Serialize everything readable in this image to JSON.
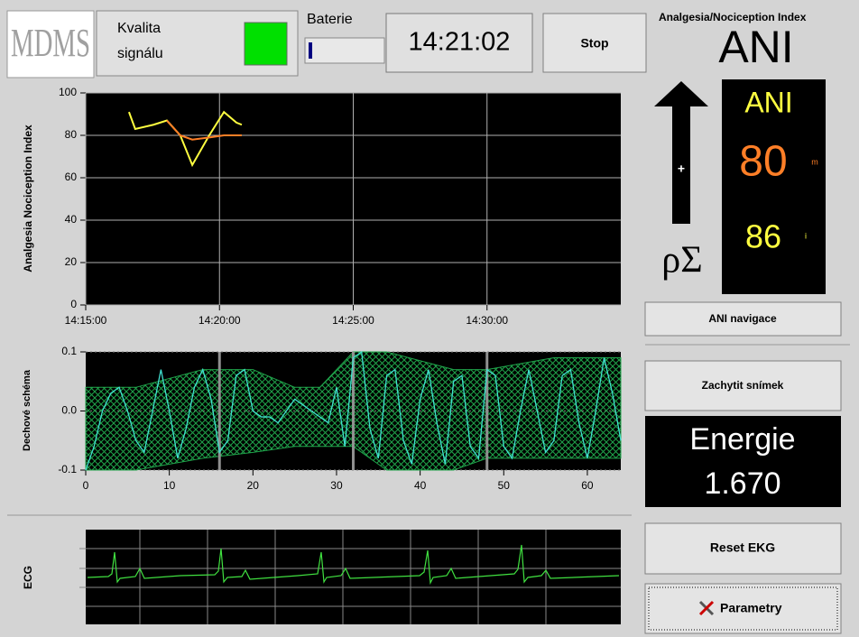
{
  "header": {
    "logo": "MDMS",
    "signal_quality_line1": "Kvalita",
    "signal_quality_line2": "signálu",
    "battery": "Baterie",
    "clock": "14:21:02",
    "stop_button": "Stop",
    "index_title": "Analgesia/Nociception Index",
    "index_short": "ANI"
  },
  "ani_panel": {
    "arrow_sign": "+",
    "symbol": "ρΣ",
    "title": "ANI",
    "mean_value": "80",
    "mean_suffix": "m",
    "instant_value": "86",
    "instant_suffix": "i"
  },
  "buttons": {
    "ani_navigation": "ANI navigace",
    "capture": "Zachytit snímek",
    "reset_ecg": "Reset EKG",
    "parameters": "Parametry"
  },
  "energy": {
    "label": "Energie",
    "value": "1.670"
  },
  "ani_chart": {
    "type": "line",
    "ylabel": "Analgesia Nociception Index",
    "x": [
      "14:16:37",
      "14:16:51",
      "14:17:32",
      "14:18:02",
      "14:18:32",
      "14:18:59",
      "14:19:37",
      "14:20:10",
      "14:20:38",
      "14:20:50"
    ],
    "series": [
      {
        "color": "#ffff40",
        "values": [
          91,
          83,
          85,
          87,
          80,
          66,
          80,
          91,
          86,
          85
        ]
      },
      {
        "color": "#ff7f27",
        "values": [
          null,
          null,
          null,
          87,
          80,
          78,
          79,
          80,
          80,
          80
        ]
      }
    ],
    "xlim": [
      "14:15:00",
      "14:35:00"
    ],
    "xticks": [
      "14:15:00",
      "14:20:00",
      "14:25:00",
      "14:30:00"
    ],
    "ylim": [
      0,
      100
    ],
    "yticks": [
      0,
      20,
      40,
      60,
      80,
      100
    ],
    "grid": true
  },
  "respiration_chart": {
    "type": "line",
    "ylabel": "Dechové schéma",
    "x": [
      0,
      1,
      2,
      3,
      4,
      5,
      6,
      7,
      8,
      9,
      10,
      11,
      12,
      13,
      14,
      15,
      16,
      17,
      18,
      19,
      20,
      21,
      22,
      23,
      24,
      25,
      26,
      27,
      28,
      29,
      30,
      31,
      32,
      33,
      34,
      35,
      36,
      37,
      38,
      39,
      40,
      41,
      42,
      43,
      44,
      45,
      46,
      47,
      48,
      49,
      50,
      51,
      52,
      53,
      54,
      55,
      56,
      57,
      58,
      59,
      60,
      61,
      62,
      63,
      64
    ],
    "series": [
      {
        "color": "#40e0d0",
        "values": [
          -0.1,
          -0.06,
          0.0,
          0.03,
          0.04,
          0.0,
          -0.05,
          -0.07,
          0.0,
          0.07,
          0.0,
          -0.08,
          -0.03,
          0.04,
          0.07,
          0.02,
          -0.07,
          -0.05,
          0.06,
          0.07,
          0.0,
          -0.01,
          -0.01,
          -0.02,
          0.0,
          0.02,
          0.01,
          0.0,
          -0.01,
          -0.02,
          0.04,
          -0.06,
          0.09,
          0.1,
          -0.03,
          -0.08,
          0.06,
          0.07,
          -0.05,
          -0.09,
          0.02,
          0.07,
          -0.02,
          -0.09,
          0.05,
          0.06,
          -0.06,
          -0.08,
          0.07,
          0.06,
          -0.06,
          -0.08,
          0.0,
          0.07,
          0.0,
          -0.07,
          -0.05,
          0.06,
          0.07,
          -0.02,
          -0.08,
          0.0,
          0.09,
          0.03,
          -0.05
        ]
      }
    ],
    "envelope": {
      "color": "#1fa34a",
      "x": [
        0,
        6,
        14,
        20,
        25,
        28,
        32,
        36,
        44,
        48,
        56,
        64
      ],
      "upper": [
        0.04,
        0.04,
        0.07,
        0.07,
        0.04,
        0.04,
        0.1,
        0.1,
        0.07,
        0.07,
        0.09,
        0.09
      ],
      "lower": [
        -0.1,
        -0.1,
        -0.08,
        -0.07,
        -0.06,
        -0.06,
        -0.06,
        -0.1,
        -0.1,
        -0.08,
        -0.08,
        -0.08
      ]
    },
    "markers": [
      16,
      32,
      48
    ],
    "xlim": [
      0,
      64
    ],
    "xticks": [
      0,
      10,
      20,
      30,
      40,
      50,
      60
    ],
    "ylim": [
      -0.1,
      0.1
    ],
    "yticks": [
      -0.1,
      {
        "value": 0,
        "label": "0.0"
      },
      0.1
    ],
    "grid": true
  },
  "ecg": {
    "label": "ECG"
  }
}
